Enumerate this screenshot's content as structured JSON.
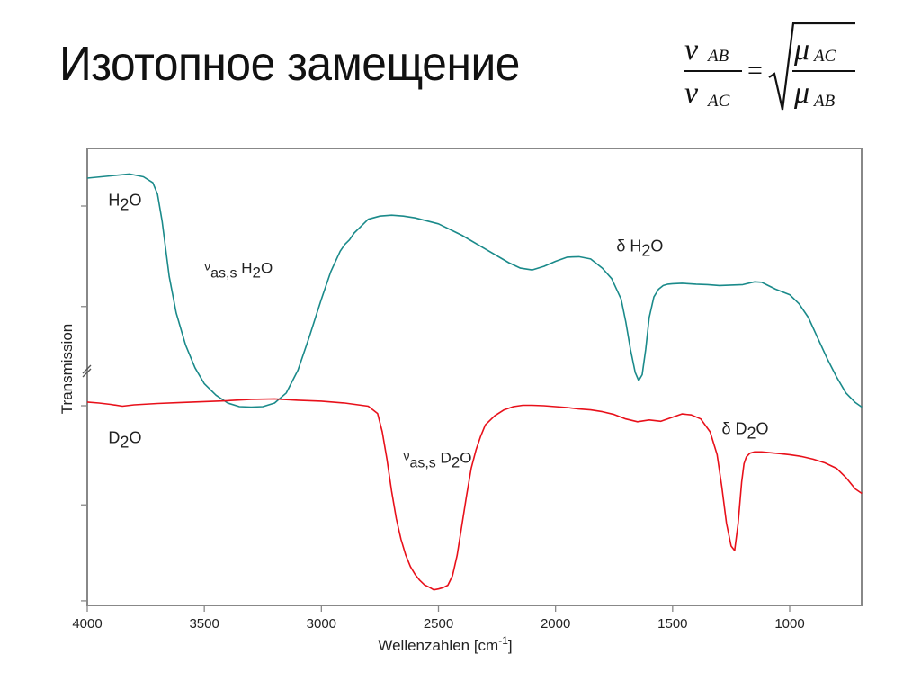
{
  "slide": {
    "title": "Изотопное замещение",
    "formula": {
      "lhs_num_symbol": "ν",
      "lhs_num_sub": "AB",
      "lhs_den_symbol": "ν",
      "lhs_den_sub": "AC",
      "equals": "=",
      "rhs_num_symbol": "μ",
      "rhs_num_sub": "AC",
      "rhs_den_symbol": "μ",
      "rhs_den_sub": "AB"
    }
  },
  "colors": {
    "h2o_series": "#1a8a8a",
    "d2o_series": "#e8101a",
    "axis": "#888888",
    "text": "#222222"
  },
  "chart_data": {
    "type": "line",
    "title": "",
    "xlabel": "Wellenzahlen [cm-1]",
    "xlabel_main": "Wellenzahlen [cm",
    "xlabel_sup": "-1",
    "xlabel_end": "]",
    "ylabel": "Transmission",
    "xlim": [
      4000,
      692
    ],
    "x_reversed": true,
    "ylim": [
      0,
      100
    ],
    "y_units": "relative (arbitrary, axis break between series)",
    "y_axis_break": true,
    "grid": false,
    "legend": "none (inline labels)",
    "x_ticks": [
      4000,
      3500,
      3000,
      2500,
      2000,
      1500,
      1000
    ],
    "x_tick_labels": [
      "4000",
      "3500",
      "3000",
      "2500",
      "2000",
      "1500",
      "1000"
    ],
    "y_ticks_rel": [
      87.4,
      65.4,
      43.7,
      22.0,
      1.0
    ],
    "annotations": [
      {
        "text": "H",
        "sub": "2",
        "tail": "O",
        "name": "label-h2o",
        "x": 3910,
        "y": 87.5
      },
      {
        "text": "ν",
        "sub": "as,s",
        "tail": " H2O",
        "name": "label-nu-h2o",
        "x": 3500,
        "y": 72.5
      },
      {
        "text": "δ H",
        "sub": "2",
        "tail": "O",
        "name": "label-delta-h2o",
        "x": 1740,
        "y": 77.5
      },
      {
        "text": "D",
        "sub": "2",
        "tail": "O",
        "name": "label-d2o",
        "x": 3910,
        "y": 35.5
      },
      {
        "text": "ν",
        "sub": "as,s",
        "tail": " D2O",
        "name": "label-nu-d2o",
        "x": 2650,
        "y": 31.0
      },
      {
        "text": "δ D",
        "sub": "2",
        "tail": "O",
        "name": "label-delta-d2o",
        "x": 1290,
        "y": 37.5
      }
    ],
    "series": [
      {
        "name": "H2O",
        "color": "#1a8a8a",
        "x": [
          4000,
          3900,
          3820,
          3760,
          3720,
          3700,
          3680,
          3650,
          3620,
          3580,
          3540,
          3500,
          3450,
          3400,
          3350,
          3300,
          3250,
          3200,
          3150,
          3100,
          3050,
          3000,
          2960,
          2920,
          2900,
          2880,
          2860,
          2840,
          2800,
          2750,
          2700,
          2650,
          2600,
          2500,
          2400,
          2300,
          2200,
          2150,
          2100,
          2050,
          2000,
          1950,
          1900,
          1850,
          1800,
          1760,
          1720,
          1700,
          1680,
          1660,
          1645,
          1630,
          1615,
          1600,
          1580,
          1560,
          1540,
          1520,
          1500,
          1460,
          1400,
          1350,
          1300,
          1250,
          1200,
          1150,
          1120,
          1100,
          1060,
          1000,
          960,
          920,
          880,
          840,
          800,
          760,
          720,
          692
        ],
        "y": [
          93.5,
          94.0,
          94.4,
          93.8,
          92.5,
          90.0,
          84.0,
          72.0,
          64.0,
          57.0,
          52.0,
          48.5,
          46.0,
          44.3,
          43.5,
          43.4,
          43.5,
          44.3,
          46.5,
          51.5,
          59.0,
          67.0,
          73.0,
          77.5,
          79.0,
          80.0,
          81.5,
          82.5,
          84.5,
          85.2,
          85.4,
          85.2,
          84.8,
          83.5,
          81.0,
          78.0,
          75.0,
          73.8,
          73.4,
          74.2,
          75.3,
          76.2,
          76.3,
          75.8,
          73.8,
          71.5,
          67.0,
          62.0,
          56.0,
          51.0,
          49.2,
          50.5,
          56.0,
          63.0,
          67.5,
          69.2,
          70.0,
          70.3,
          70.4,
          70.5,
          70.3,
          70.2,
          70.0,
          70.1,
          70.2,
          70.8,
          70.7,
          70.2,
          69.2,
          68.0,
          66.0,
          63.0,
          58.5,
          54.0,
          50.0,
          46.5,
          44.4,
          43.4
        ]
      },
      {
        "name": "D2O",
        "color": "#e8101a",
        "x": [
          4000,
          3950,
          3900,
          3850,
          3800,
          3700,
          3600,
          3500,
          3400,
          3300,
          3200,
          3100,
          3000,
          2900,
          2800,
          2760,
          2740,
          2720,
          2700,
          2680,
          2660,
          2640,
          2620,
          2600,
          2580,
          2560,
          2540,
          2520,
          2500,
          2480,
          2460,
          2440,
          2420,
          2400,
          2380,
          2360,
          2340,
          2320,
          2300,
          2260,
          2220,
          2180,
          2140,
          2100,
          2050,
          2000,
          1950,
          1900,
          1850,
          1800,
          1750,
          1700,
          1650,
          1600,
          1550,
          1500,
          1460,
          1420,
          1380,
          1340,
          1310,
          1290,
          1270,
          1250,
          1235,
          1220,
          1205,
          1195,
          1185,
          1170,
          1150,
          1120,
          1080,
          1040,
          1000,
          950,
          900,
          850,
          800,
          760,
          720,
          692
        ],
        "y": [
          44.5,
          44.3,
          44.0,
          43.6,
          43.9,
          44.2,
          44.4,
          44.6,
          44.8,
          45.1,
          45.2,
          44.9,
          44.7,
          44.3,
          43.6,
          42.0,
          38.0,
          32.0,
          25.0,
          19.0,
          14.5,
          11.0,
          8.5,
          6.8,
          5.5,
          4.5,
          4.0,
          3.4,
          3.6,
          3.9,
          4.4,
          6.5,
          11.0,
          17.5,
          24.0,
          30.0,
          34.0,
          37.0,
          39.5,
          41.5,
          42.8,
          43.5,
          43.8,
          43.8,
          43.7,
          43.5,
          43.3,
          43.0,
          42.8,
          42.4,
          41.8,
          40.8,
          40.2,
          40.6,
          40.3,
          41.2,
          41.9,
          41.7,
          40.8,
          38.0,
          33.0,
          26.0,
          18.0,
          13.0,
          12.0,
          18.0,
          27.0,
          31.0,
          32.5,
          33.3,
          33.6,
          33.6,
          33.4,
          33.2,
          33.0,
          32.6,
          32.0,
          31.2,
          30.0,
          28.0,
          25.5,
          24.5
        ]
      }
    ]
  }
}
